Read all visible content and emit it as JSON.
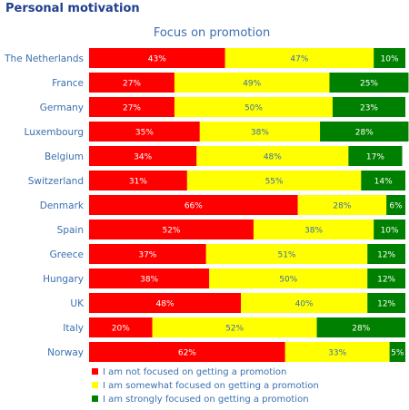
{
  "header": {
    "title": "Personal motivation"
  },
  "chart_data": {
    "type": "bar",
    "orientation": "horizontal",
    "stacked": true,
    "percent_stacked": true,
    "title": "Focus on promotion",
    "xlim": [
      0,
      100
    ],
    "grid": false,
    "legend_position": "bottom",
    "categories": [
      "The Netherlands",
      "France",
      "Germany",
      "Luxembourg",
      "Belgium",
      "Switzerland",
      "Denmark",
      "Spain",
      "Greece",
      "Hungary",
      "UK",
      "Italy",
      "Norway"
    ],
    "series": [
      {
        "name": "I am not focused on getting a promotion",
        "color": "#ff0000",
        "label_color": "#ffffff",
        "values": [
          43,
          27,
          27,
          35,
          34,
          31,
          66,
          52,
          37,
          38,
          48,
          20,
          62
        ]
      },
      {
        "name": "I am somewhat focused on getting a promotion",
        "color": "#ffff00",
        "label_color": "#3a6fb0",
        "values": [
          47,
          49,
          50,
          38,
          48,
          55,
          28,
          38,
          51,
          50,
          40,
          52,
          33
        ]
      },
      {
        "name": "I am strongly focused on getting a promotion",
        "color": "#008000",
        "label_color": "#ffffff",
        "values": [
          10,
          25,
          23,
          28,
          17,
          14,
          6,
          10,
          12,
          12,
          12,
          28,
          5
        ]
      }
    ],
    "colors": {
      "category_label": "#3a6fb0",
      "title": "#3a6fb0",
      "legend_text": "#3a6fb0"
    }
  }
}
